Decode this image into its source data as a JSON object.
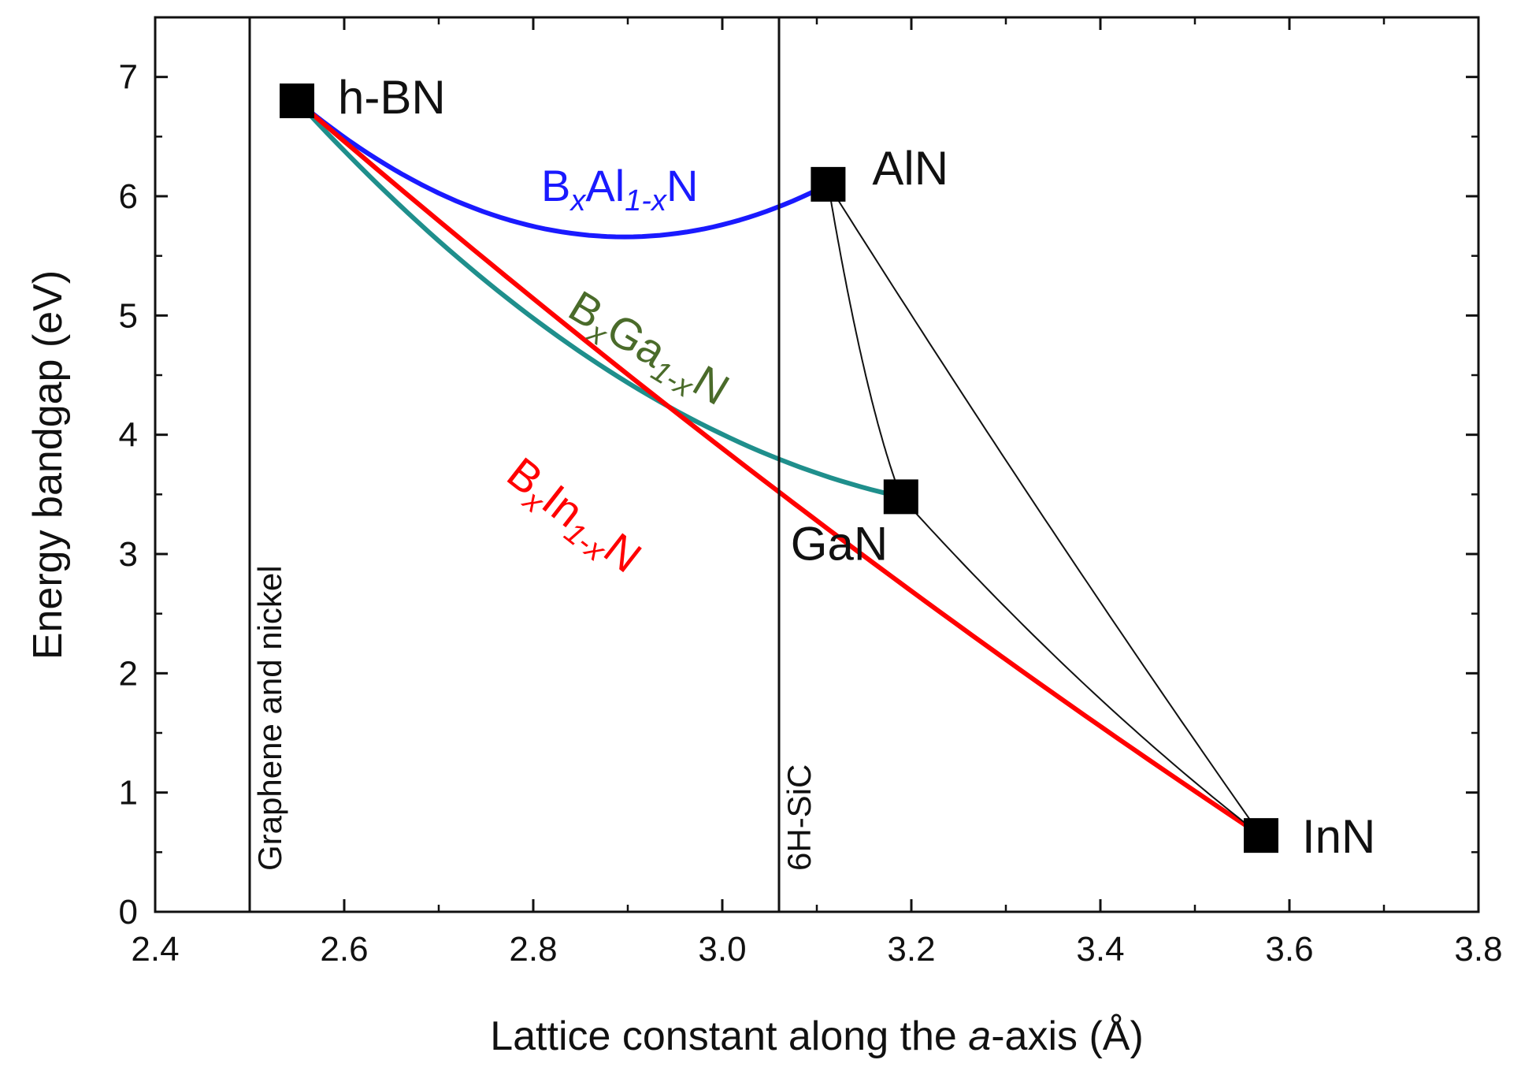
{
  "chart_data": {
    "type": "line",
    "title": "",
    "xlabel_parts": [
      "Lattice constant along the ",
      "a",
      "-axis (Å)"
    ],
    "ylabel": "Energy bandgap (eV)",
    "xlim": [
      2.4,
      3.8
    ],
    "ylim": [
      0,
      7.5
    ],
    "xticks": [
      2.4,
      2.6,
      2.8,
      3.0,
      3.2,
      3.4,
      3.6,
      3.8
    ],
    "xtick_labels": [
      "2.4",
      "2.6",
      "2.8",
      "3.0",
      "3.2",
      "3.4",
      "3.6",
      "3.8"
    ],
    "yticks": [
      0,
      1,
      2,
      3,
      4,
      5,
      6,
      7
    ],
    "ytick_labels": [
      "0",
      "1",
      "2",
      "3",
      "4",
      "5",
      "6",
      "7"
    ],
    "grid": false,
    "points": [
      {
        "name": "h-BN",
        "x": 2.55,
        "y": 6.8,
        "label": "h-BN"
      },
      {
        "name": "AlN",
        "x": 3.112,
        "y": 6.1,
        "label": "AlN"
      },
      {
        "name": "GaN",
        "x": 3.189,
        "y": 3.48,
        "label": "GaN"
      },
      {
        "name": "InN",
        "x": 3.57,
        "y": 0.64,
        "label": "InN"
      }
    ],
    "vlines": [
      {
        "name": "graphene-nickel",
        "x": 2.5,
        "label": "Graphene and nickel"
      },
      {
        "name": "6h-sic",
        "x": 3.06,
        "label": "6H-SiC"
      }
    ],
    "series": [
      {
        "name": "BxAl1-xN",
        "label_parts": [
          "B",
          "x",
          "Al",
          "1-x",
          "N"
        ],
        "color": "#1a1aff",
        "from": 2.55,
        "to": 3.112,
        "y0": 6.8,
        "y1": 6.1,
        "bowing": 3.0
      },
      {
        "name": "BxGa1-xN",
        "label_parts": [
          "B",
          "x",
          "Ga",
          "1-x",
          "N"
        ],
        "color": "#1f8f8c",
        "label_color": "#4a6b2a",
        "from": 2.55,
        "to": 3.189,
        "y0": 6.8,
        "y1": 3.48,
        "bowing": 2.2
      },
      {
        "name": "BxIn1-xN",
        "label_parts": [
          "B",
          "x",
          "In",
          "1-x",
          "N"
        ],
        "color": "#ff0000",
        "from": 2.55,
        "to": 3.57,
        "y0": 6.8,
        "y1": 0.64,
        "bowing": 0.8
      },
      {
        "name": "AlGaN",
        "color": "#111111",
        "from": 3.112,
        "to": 3.189,
        "y0": 6.1,
        "y1": 3.48,
        "bowing": 1.0
      },
      {
        "name": "AlInN",
        "color": "#111111",
        "from": 3.112,
        "to": 3.57,
        "y0": 6.1,
        "y1": 0.64,
        "bowing": 0.3
      },
      {
        "name": "GaInN",
        "color": "#111111",
        "from": 3.189,
        "to": 3.57,
        "y0": 3.48,
        "y1": 0.64,
        "bowing": 0.5
      }
    ]
  }
}
